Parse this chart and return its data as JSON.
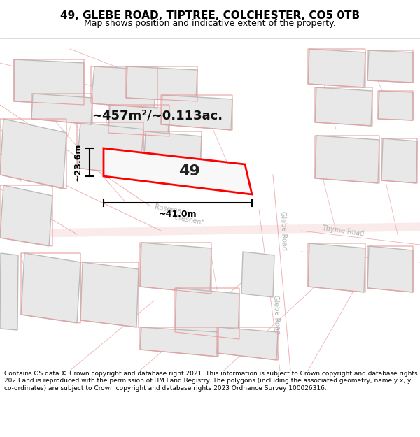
{
  "title": "49, GLEBE ROAD, TIPTREE, COLCHESTER, CO5 0TB",
  "subtitle": "Map shows position and indicative extent of the property.",
  "footer": "Contains OS data © Crown copyright and database right 2021. This information is subject to Crown copyright and database rights 2023 and is reproduced with the permission of HM Land Registry. The polygons (including the associated geometry, namely x, y co-ordinates) are subject to Crown copyright and database rights 2023 Ordnance Survey 100026316.",
  "bg_color": "#f5f5f5",
  "map_bg": "#f0efee",
  "road_color": "#ffffff",
  "road_stroke": "#cccccc",
  "building_fill": "#e8e8e8",
  "building_stroke": "#bbbbbb",
  "highlight_fill": "#fafafa",
  "highlight_stroke": "#e0c0c0",
  "red_stroke": "#ff0000",
  "area_text": "~457m²/~0.113ac.",
  "property_number": "49",
  "dim_width": "~41.0m",
  "dim_height": "~23.6m",
  "road_label_color": "#aaaaaa",
  "figsize": [
    6.0,
    6.25
  ],
  "dpi": 100
}
